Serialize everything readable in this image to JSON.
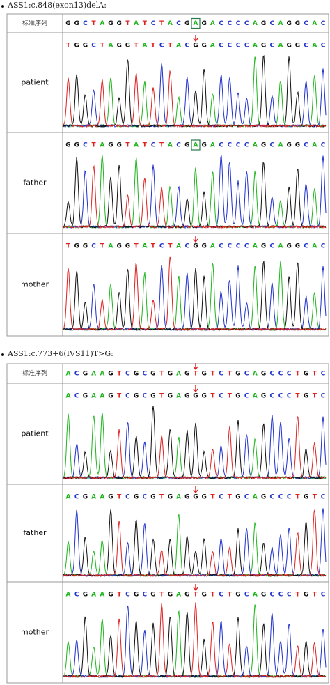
{
  "sections": [
    {
      "heading": "ASS1:c.848(exon13)delA:",
      "reference_label": "标准序列",
      "reference_sequence": [
        "G",
        "G",
        "C",
        "T",
        "A",
        "G",
        "G",
        "T",
        "A",
        "T",
        "C",
        "T",
        "A",
        "C",
        "G",
        "A",
        "G",
        "A",
        "C",
        "C",
        "C",
        "C",
        "A",
        "G",
        "C",
        "A",
        "G",
        "G",
        "C",
        "A",
        "C"
      ],
      "rows": [
        {
          "label": "patient",
          "sequence": [
            "T",
            "G",
            "G",
            "C",
            "T",
            "A",
            "G",
            "G",
            "T",
            "A",
            "T",
            "C",
            "T",
            "A",
            "C",
            "G",
            "G",
            "A",
            "C",
            "C",
            "C",
            "C",
            "A",
            "G",
            "C",
            "A",
            "G",
            "G",
            "C",
            "A",
            "C"
          ]
        },
        {
          "label": "father",
          "sequence": [
            "G",
            "G",
            "C",
            "T",
            "A",
            "G",
            "G",
            "T",
            "A",
            "T",
            "C",
            "T",
            "A",
            "C",
            "G",
            "A",
            "G",
            "A",
            "C",
            "C",
            "C",
            "C",
            "A",
            "G",
            "C",
            "A",
            "G",
            "G",
            "C",
            "A",
            "C"
          ]
        },
        {
          "label": "mother",
          "sequence": [
            "T",
            "G",
            "G",
            "C",
            "T",
            "A",
            "G",
            "G",
            "T",
            "A",
            "T",
            "C",
            "T",
            "A",
            "C",
            "G",
            "G",
            "A",
            "C",
            "C",
            "C",
            "C",
            "A",
            "G",
            "C",
            "A",
            "G",
            "G",
            "C",
            "A",
            "C"
          ]
        }
      ]
    },
    {
      "heading": "ASS1:c.773+6(IVS11)T>G:",
      "reference_label": "标准序列",
      "reference_sequence": [
        "A",
        "C",
        "G",
        "A",
        "A",
        "G",
        "T",
        "C",
        "G",
        "C",
        "G",
        "T",
        "G",
        "A",
        "G",
        "T",
        "G",
        "T",
        "C",
        "T",
        "G",
        "C",
        "A",
        "G",
        "C",
        "C",
        "C",
        "T",
        "G",
        "T",
        "C"
      ],
      "rows": [
        {
          "label": "patient",
          "sequence": [
            "A",
            "C",
            "G",
            "A",
            "A",
            "G",
            "T",
            "C",
            "G",
            "C",
            "G",
            "T",
            "G",
            "A",
            "G",
            "G",
            "G",
            "T",
            "C",
            "T",
            "G",
            "C",
            "A",
            "G",
            "C",
            "C",
            "C",
            "T",
            "G",
            "T",
            "C"
          ]
        },
        {
          "label": "father",
          "sequence": [
            "A",
            "C",
            "G",
            "A",
            "A",
            "G",
            "T",
            "C",
            "G",
            "C",
            "G",
            "T",
            "G",
            "A",
            "G",
            "G",
            "G",
            "T",
            "C",
            "T",
            "G",
            "C",
            "A",
            "G",
            "C",
            "C",
            "C",
            "T",
            "G",
            "T",
            "C"
          ]
        },
        {
          "label": "mother",
          "sequence": [
            "A",
            "C",
            "G",
            "A",
            "A",
            "G",
            "T",
            "C",
            "G",
            "C",
            "G",
            "T",
            "G",
            "A",
            "G",
            "T",
            "G",
            "T",
            "C",
            "T",
            "G",
            "C",
            "A",
            "G",
            "C",
            "C",
            "C",
            "T",
            "G",
            "T",
            "C"
          ]
        }
      ]
    }
  ]
}
